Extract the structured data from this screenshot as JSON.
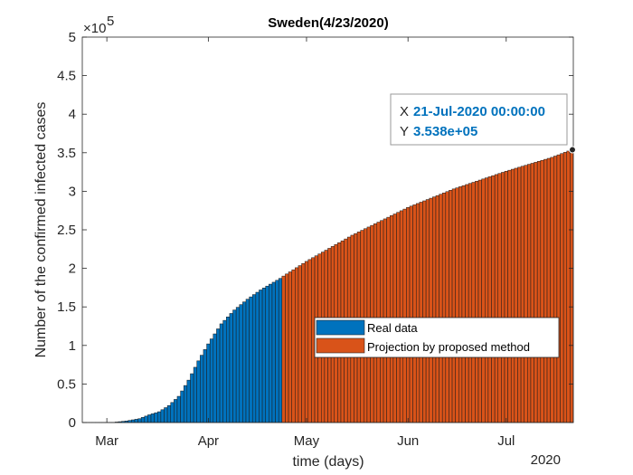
{
  "chart_data": {
    "type": "bar",
    "title": "Sweden(4/23/2020)",
    "xlabel": "time (days)",
    "ylabel": "Number of the confirmed infected cases",
    "x_start": "2020-02-23",
    "x_end": "2020-07-21",
    "split_date": "2020-04-24",
    "year_label": "2020",
    "y_exponent_base": "×10",
    "y_exponent_power": "5",
    "y_multiplier": 100000,
    "ylim": [
      0,
      5
    ],
    "y_ticks": [
      "0",
      "0.5",
      "1",
      "1.5",
      "2",
      "2.5",
      "3",
      "3.5",
      "4",
      "4.5",
      "5"
    ],
    "x_ticks": [
      {
        "date": "2020-03-01",
        "label": "Mar"
      },
      {
        "date": "2020-04-01",
        "label": "Apr"
      },
      {
        "date": "2020-05-01",
        "label": "May"
      },
      {
        "date": "2020-06-01",
        "label": "Jun"
      },
      {
        "date": "2020-07-01",
        "label": "Jul"
      }
    ],
    "grid": false,
    "legend_position": "lower-right",
    "series": [
      {
        "name": "Real data",
        "color": "#0072bd"
      },
      {
        "name": "Projection by proposed method",
        "color": "#d95319"
      }
    ],
    "real_data": [
      {
        "date": "2020-02-23",
        "value": 0
      },
      {
        "date": "2020-02-28",
        "value": 0.001
      },
      {
        "date": "2020-03-03",
        "value": 0.002
      },
      {
        "date": "2020-03-07",
        "value": 0.02
      },
      {
        "date": "2020-03-11",
        "value": 0.05
      },
      {
        "date": "2020-03-14",
        "value": 0.1
      },
      {
        "date": "2020-03-17",
        "value": 0.14
      },
      {
        "date": "2020-03-20",
        "value": 0.22
      },
      {
        "date": "2020-03-23",
        "value": 0.34
      },
      {
        "date": "2020-03-26",
        "value": 0.55
      },
      {
        "date": "2020-03-29",
        "value": 0.8
      },
      {
        "date": "2020-04-01",
        "value": 1.02
      },
      {
        "date": "2020-04-05",
        "value": 1.28
      },
      {
        "date": "2020-04-09",
        "value": 1.46
      },
      {
        "date": "2020-04-13",
        "value": 1.6
      },
      {
        "date": "2020-04-17",
        "value": 1.72
      },
      {
        "date": "2020-04-21",
        "value": 1.82
      },
      {
        "date": "2020-04-23",
        "value": 1.87
      }
    ],
    "projection": [
      {
        "date": "2020-04-24",
        "value": 1.9
      },
      {
        "date": "2020-05-01",
        "value": 2.09
      },
      {
        "date": "2020-05-15",
        "value": 2.43
      },
      {
        "date": "2020-06-01",
        "value": 2.79
      },
      {
        "date": "2020-06-15",
        "value": 3.03
      },
      {
        "date": "2020-07-01",
        "value": 3.26
      },
      {
        "date": "2020-07-15",
        "value": 3.44
      },
      {
        "date": "2020-07-21",
        "value": 3.538
      }
    ],
    "datatip": {
      "x_label": "X",
      "x_value": "21-Jul-2020 00:00:00",
      "y_label": "Y",
      "y_value": "3.538e+05",
      "date": "2020-07-21",
      "value": 3.538
    }
  }
}
